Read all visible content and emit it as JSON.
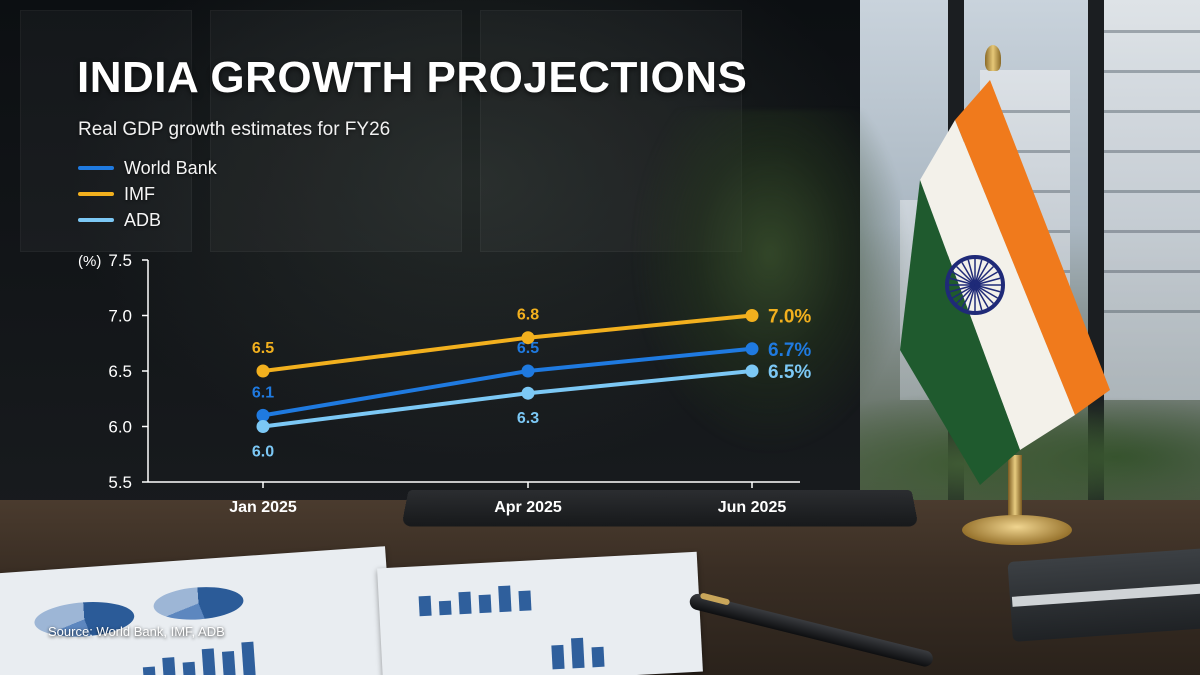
{
  "title": "INDIA GROWTH PROJECTIONS",
  "subtitle": "Real GDP growth estimates for FY26",
  "source": "Source: World Bank, IMF, ADB",
  "colors": {
    "world_bank": "#1f7ae0",
    "imf": "#f2b01e",
    "adb": "#7cc8f5",
    "axis": "#ffffff"
  },
  "chart_data": {
    "type": "line",
    "title": "INDIA GROWTH PROJECTIONS",
    "subtitle": "Real GDP growth estimates for FY26",
    "ylabel": "(%)",
    "xlabel": "",
    "categories": [
      "Jan 2025",
      "Apr 2025",
      "Jun 2025"
    ],
    "ylim": [
      5.5,
      7.5
    ],
    "yticks": [
      "5.5",
      "6.0",
      "6.5",
      "7.0",
      "7.5"
    ],
    "grid": false,
    "legend": "top-left",
    "series": [
      {
        "name": "World Bank",
        "color": "#1f7ae0",
        "values": [
          6.1,
          6.5,
          6.7
        ],
        "labels": [
          "6.1",
          "6.5",
          "6.7%"
        ]
      },
      {
        "name": "IMF",
        "color": "#f2b01e",
        "values": [
          6.5,
          6.8,
          7.0
        ],
        "labels": [
          "6.5",
          "6.8",
          "7.0%"
        ]
      },
      {
        "name": "ADB",
        "color": "#7cc8f5",
        "values": [
          6.0,
          6.3,
          6.5
        ],
        "labels": [
          "6.0",
          "6.3",
          "6.5%"
        ]
      }
    ]
  }
}
